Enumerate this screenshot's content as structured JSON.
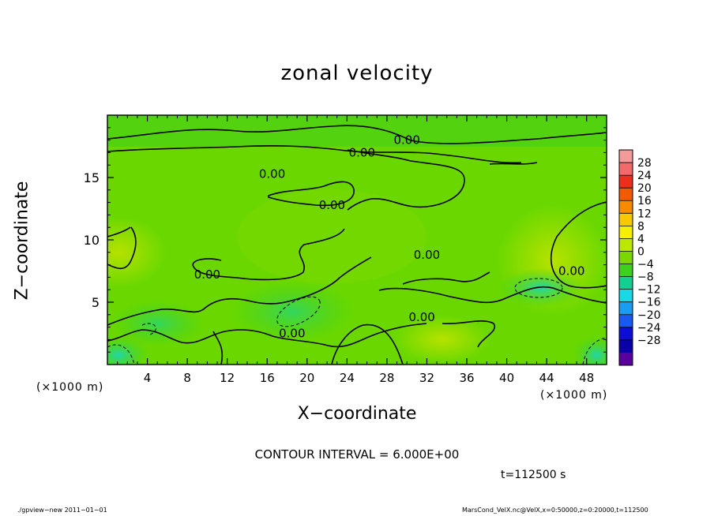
{
  "chart_data": {
    "type": "heatmap",
    "title": "zonal velocity",
    "xlabel": "X−coordinate",
    "ylabel": "Z−coordinate",
    "x_unit": "(×1000 m)",
    "xlim": [
      0,
      50
    ],
    "ylim": [
      0,
      20
    ],
    "x_ticks": [
      4,
      8,
      12,
      16,
      20,
      24,
      28,
      32,
      36,
      40,
      44,
      48
    ],
    "y_ticks": [
      5,
      10,
      15
    ],
    "contour_labels": [
      {
        "text": "0.00",
        "x": 30.0,
        "z": 18.0
      },
      {
        "text": "0.00",
        "x": 25.5,
        "z": 17.0
      },
      {
        "text": "0.00",
        "x": 16.5,
        "z": 15.3
      },
      {
        "text": "0.00",
        "x": 22.5,
        "z": 12.8
      },
      {
        "text": "0.00",
        "x": 32.0,
        "z": 8.8
      },
      {
        "text": "0.00",
        "x": 10.0,
        "z": 7.2
      },
      {
        "text": "0.00",
        "x": 46.5,
        "z": 7.5
      },
      {
        "text": "0.00",
        "x": 31.5,
        "z": 3.8
      },
      {
        "text": "0.00",
        "x": 18.5,
        "z": 2.5
      }
    ],
    "colorbar": {
      "labels": [
        "28",
        "24",
        "20",
        "16",
        "12",
        "8",
        "4",
        "0",
        "−4",
        "−8",
        "−12",
        "−16",
        "−20",
        "−24",
        "−28"
      ],
      "colors": [
        "#f59a9a",
        "#f26a6a",
        "#ec2e1e",
        "#f05a00",
        "#f88a00",
        "#f8c800",
        "#f4f000",
        "#bce800",
        "#7ad800",
        "#3fd01c",
        "#14d090",
        "#1ad8e6",
        "#1a9cf0",
        "#1a58f0",
        "#0d0dd6",
        "#0a00a8",
        "#5a009c"
      ]
    },
    "contour_interval": "CONTOUR INTERVAL = 6.000E+00",
    "time": "t=112500 s"
  },
  "footer": {
    "left": "./gpview−new   2011−01−01",
    "right": "MarsCond_VelX.nc@VelX,x=0:50000,z=0:20000,t=112500"
  }
}
